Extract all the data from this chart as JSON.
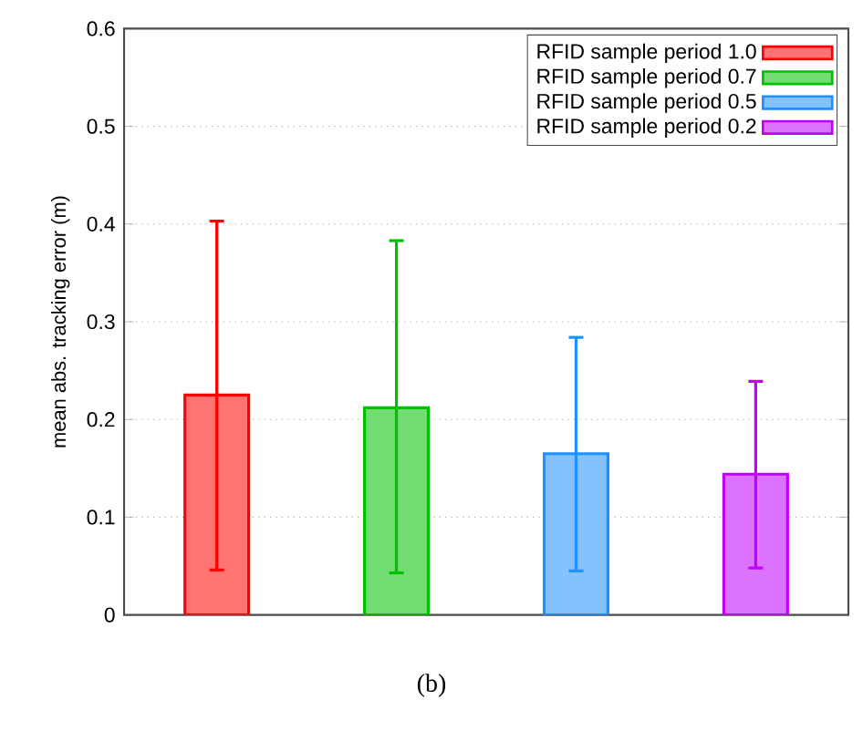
{
  "chart_data": {
    "type": "bar",
    "ylabel": "mean abs. tracking error (m)",
    "categories": [
      null
    ],
    "series": [
      {
        "name": "RFID sample period 1.0",
        "color": "#ff0000",
        "values": [
          0.225
        ],
        "errors": [
          [
            0.046,
            0.403
          ]
        ]
      },
      {
        "name": "RFID sample period 0.7",
        "color": "#00c000",
        "values": [
          0.212
        ],
        "errors": [
          [
            0.043,
            0.383
          ]
        ]
      },
      {
        "name": "RFID sample period 0.5",
        "color": "#1e90ff",
        "values": [
          0.165
        ],
        "errors": [
          [
            0.045,
            0.284
          ]
        ]
      },
      {
        "name": "RFID sample period 0.2",
        "color": "#c000ff",
        "values": [
          0.144
        ],
        "errors": [
          [
            0.048,
            0.239
          ]
        ]
      }
    ],
    "ylim": [
      0,
      0.6
    ],
    "yticks": [
      0,
      0.1,
      0.2,
      0.3,
      0.4,
      0.5,
      0.6
    ],
    "grid": "y",
    "legend": "top right",
    "annotations": [
      "(b)"
    ]
  }
}
